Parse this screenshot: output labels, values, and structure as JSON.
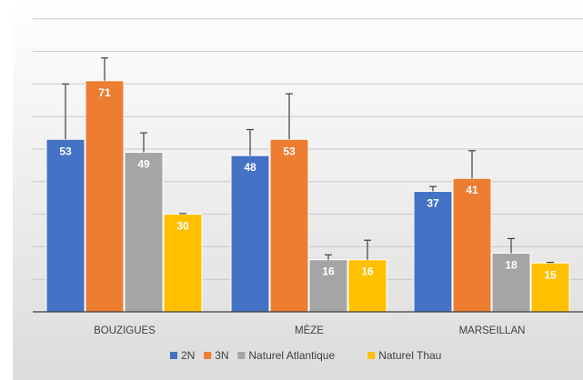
{
  "chart_data": {
    "type": "bar",
    "title": "",
    "xlabel": "",
    "ylabel": "",
    "categories": [
      "BOUZIGUES",
      "MÈZE",
      "MARSEILLAN"
    ],
    "ylim": [
      0,
      95
    ],
    "grid": true,
    "gridlines": [
      10,
      20,
      30,
      40,
      50,
      60,
      70,
      80,
      90
    ],
    "legend_position": "bottom",
    "series": [
      {
        "name": "2N",
        "color": "#4472C4",
        "values": [
          53,
          48,
          37
        ],
        "error": [
          17,
          8,
          1.5
        ]
      },
      {
        "name": "3N",
        "color": "#ED7D31",
        "values": [
          71,
          53,
          41
        ],
        "error": [
          7,
          14,
          8.5
        ]
      },
      {
        "name": "Naturel Atlantique",
        "color": "#A5A5A5",
        "values": [
          49,
          16,
          18
        ],
        "error": [
          6,
          1.5,
          4.5
        ]
      },
      {
        "name": "Naturel Thau",
        "color": "#FFC000",
        "values": [
          30,
          16,
          15
        ],
        "error": [
          0.2,
          6,
          0.2
        ]
      }
    ]
  }
}
